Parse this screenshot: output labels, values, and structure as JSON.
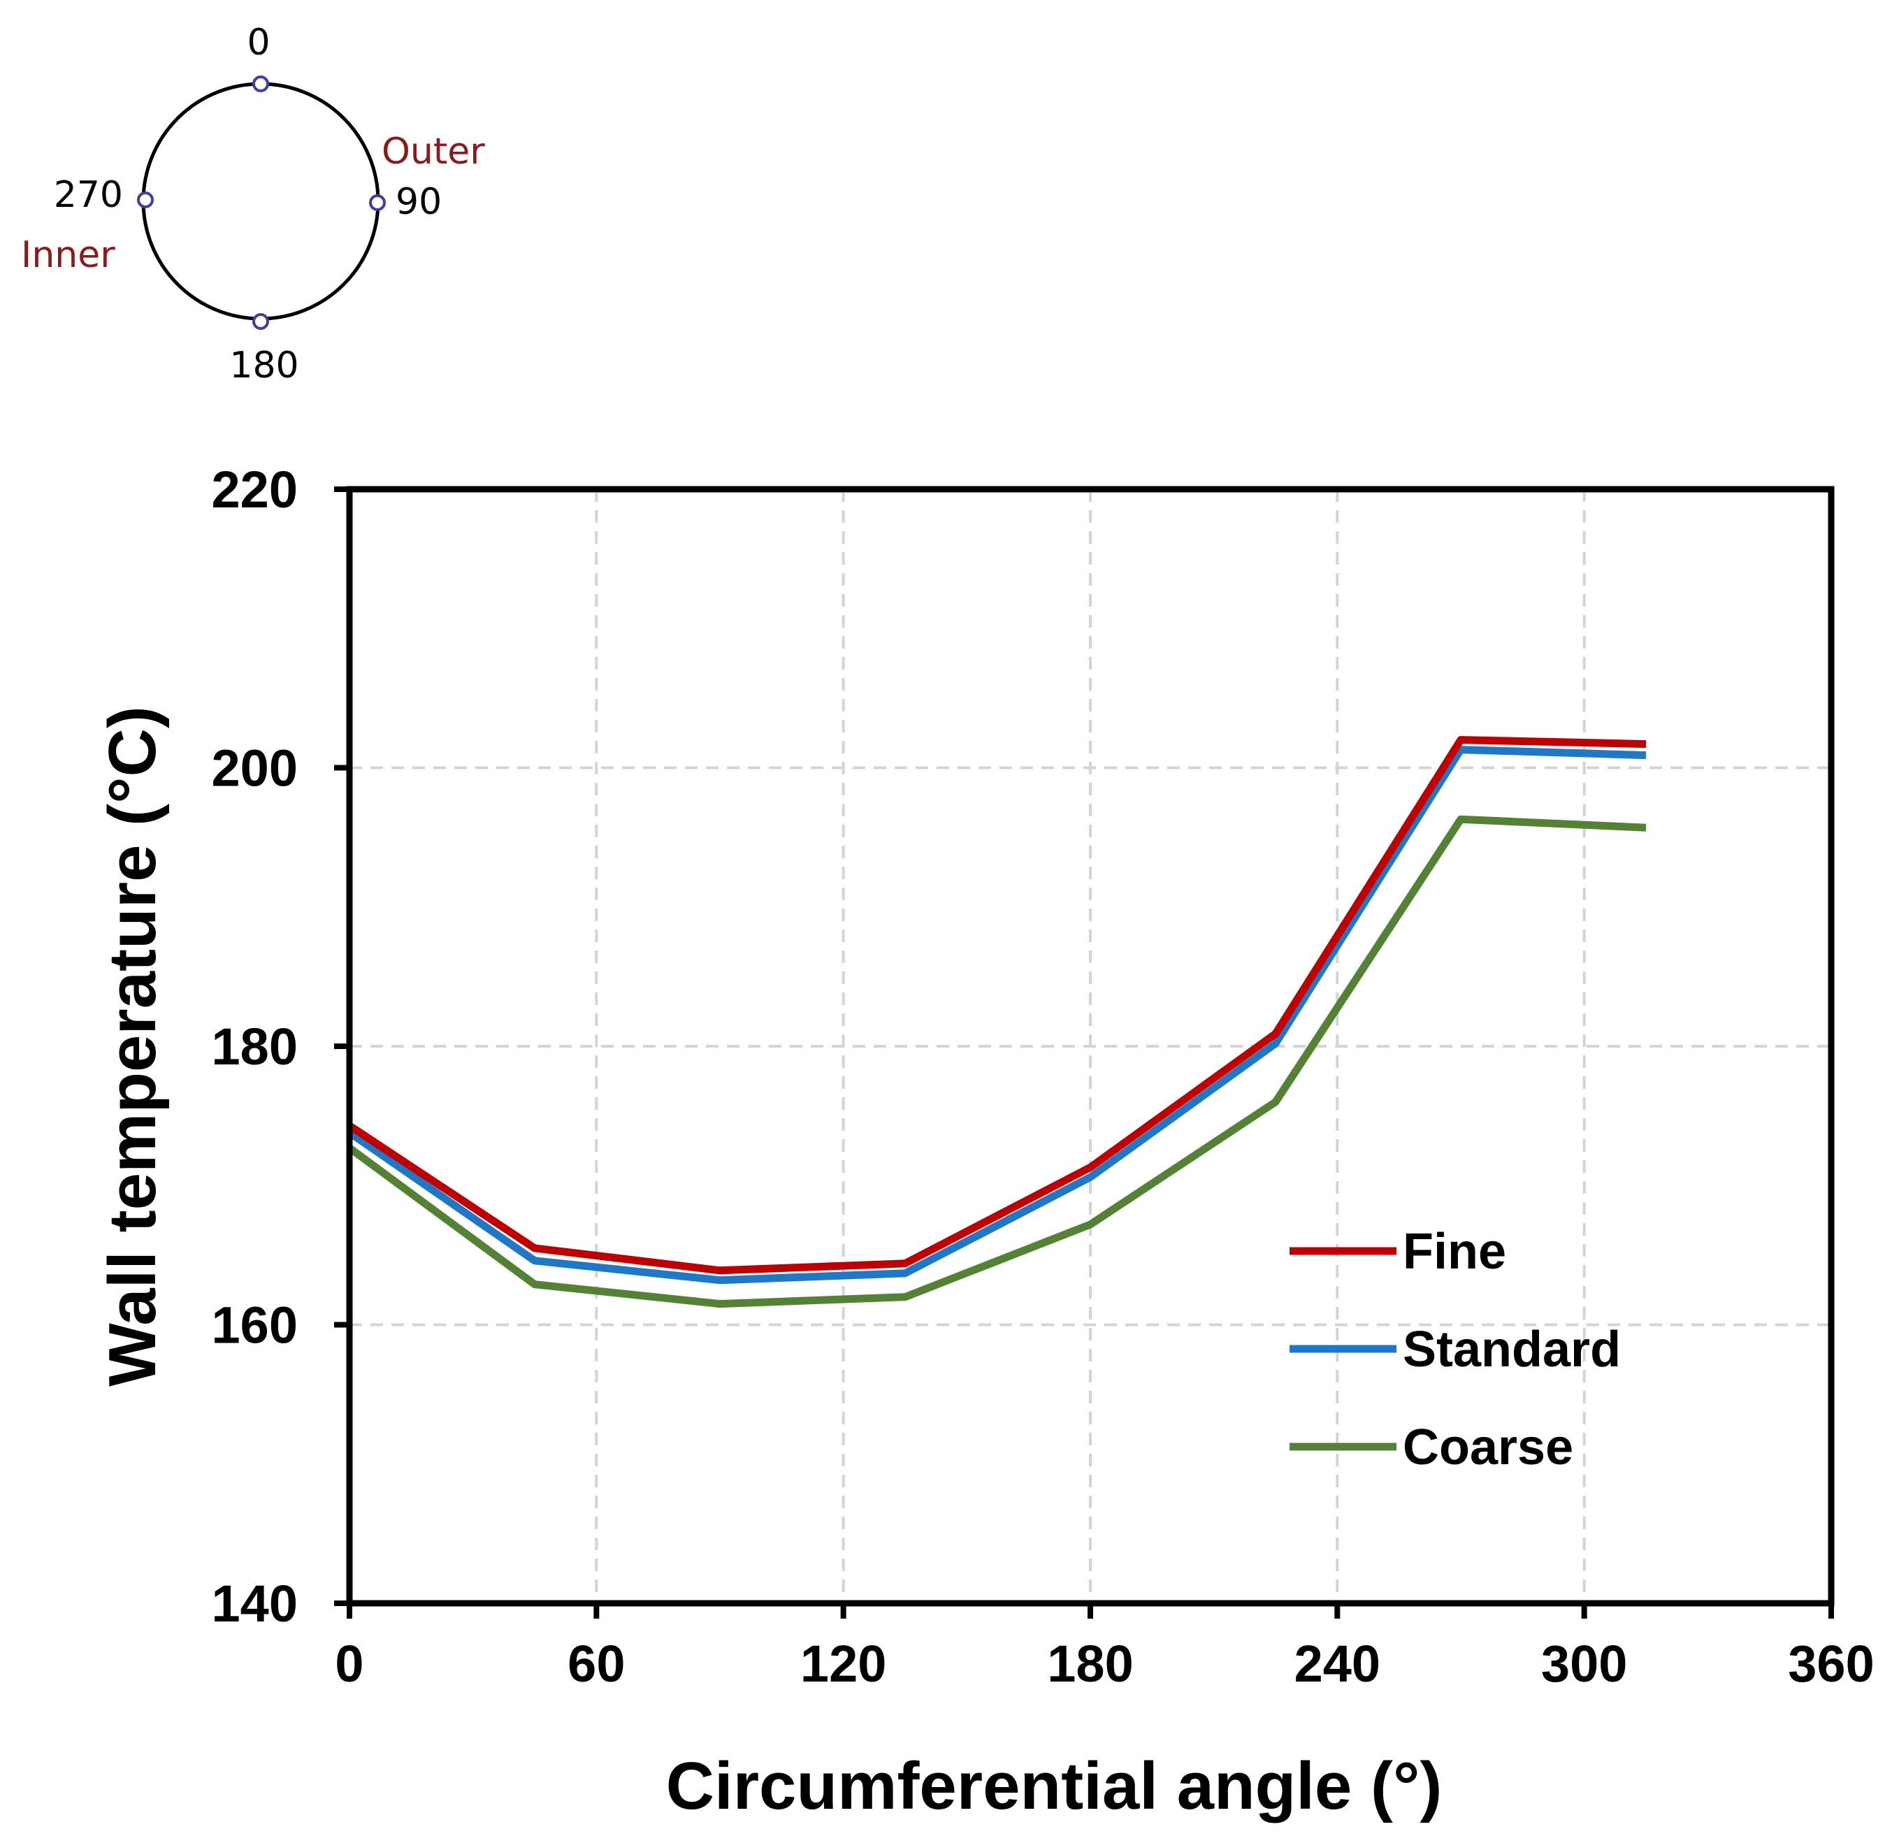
{
  "chart_data": {
    "type": "line",
    "xlabel": "Circumferential angle (°)",
    "ylabel": "Wall temperature (°C)",
    "xlim": [
      0,
      360
    ],
    "ylim": [
      140,
      220
    ],
    "xticks": [
      0,
      60,
      120,
      180,
      240,
      300,
      360
    ],
    "yticks": [
      140,
      160,
      180,
      200,
      220
    ],
    "grid": true,
    "legend_position": "lower-right",
    "x": [
      0,
      45,
      90,
      135,
      180,
      225,
      270,
      315
    ],
    "series": [
      {
        "name": "Fine",
        "color": "#c00000",
        "values": [
          174.3,
          165.5,
          163.9,
          164.4,
          171.3,
          180.9,
          202.0,
          201.7
        ]
      },
      {
        "name": "Standard",
        "color": "#1f77c8",
        "values": [
          173.8,
          164.6,
          163.2,
          163.7,
          170.6,
          180.2,
          201.3,
          200.9
        ]
      },
      {
        "name": "Coarse",
        "color": "#548235",
        "values": [
          172.7,
          162.9,
          161.5,
          162.0,
          167.2,
          176.0,
          196.3,
          195.7
        ]
      }
    ]
  },
  "diagram": {
    "angle_top": "0",
    "angle_right": "90",
    "angle_bottom": "180",
    "angle_left": "270",
    "outer_label": "Outer",
    "inner_label": "Inner",
    "label_color": "#8b1a1a",
    "marker_color": "#3f3fa0"
  }
}
